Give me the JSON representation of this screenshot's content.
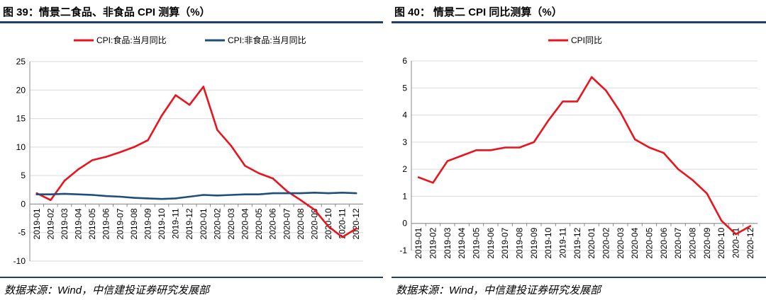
{
  "figures": [
    {
      "title": "图 39：情景二食品、非食品 CPI 测算（%）",
      "source": "数据来源：Wind，中信建投证券研究发展部"
    },
    {
      "title": "图 40：  情景二 CPI 同比测算（%）",
      "source": "数据来源：Wind，中信建投证券研究发展部"
    }
  ],
  "chart_data": [
    {
      "type": "line",
      "title": "",
      "xlabel": "",
      "ylabel": "",
      "categories": [
        "2019-01",
        "2019-02",
        "2019-03",
        "2019-04",
        "2019-05",
        "2019-06",
        "2019-07",
        "2019-08",
        "2019-09",
        "2019-10",
        "2019-11",
        "2019-12",
        "2020-01",
        "2020-02",
        "2020-03",
        "2020-04",
        "2020-05",
        "2020-06",
        "2020-07",
        "2020-08",
        "2020-09",
        "2020-10",
        "2020-11",
        "2020-12"
      ],
      "ylim": [
        -10,
        25
      ],
      "yticks": [
        -10,
        -5,
        0,
        5,
        10,
        15,
        20,
        25
      ],
      "grid": true,
      "legend_position": "top",
      "series": [
        {
          "name": "CPI:食品:当月同比",
          "color": "#e8141e",
          "values": [
            1.9,
            0.7,
            4.1,
            6.1,
            7.7,
            8.3,
            9.1,
            10.0,
            11.2,
            15.5,
            19.1,
            17.4,
            20.6,
            13.0,
            10.2,
            6.7,
            5.4,
            4.5,
            2.3,
            0.7,
            -1.0,
            -3.9,
            -5.8,
            -4.3
          ]
        },
        {
          "name": "CPI:非食品:当月同比",
          "color": "#1f4e79",
          "values": [
            1.7,
            1.7,
            1.8,
            1.7,
            1.6,
            1.4,
            1.3,
            1.1,
            1.0,
            0.9,
            1.0,
            1.3,
            1.6,
            1.5,
            1.6,
            1.7,
            1.7,
            1.9,
            1.9,
            1.9,
            2.0,
            1.9,
            2.0,
            1.9
          ]
        }
      ]
    },
    {
      "type": "line",
      "title": "",
      "xlabel": "",
      "ylabel": "",
      "categories": [
        "2019-01",
        "2019-02",
        "2019-03",
        "2019-04",
        "2019-05",
        "2019-06",
        "2019-07",
        "2019-08",
        "2019-09",
        "2019-10",
        "2019-11",
        "2019-12",
        "2020-01",
        "2020-02",
        "2020-03",
        "2020-04",
        "2020-05",
        "2020-06",
        "2020-07",
        "2020-08",
        "2020-09",
        "2020-10",
        "2020-11",
        "2020-12"
      ],
      "ylim": [
        -1,
        6
      ],
      "yticks": [
        -1,
        0,
        1,
        2,
        3,
        4,
        5,
        6
      ],
      "grid": true,
      "legend_position": "top",
      "series": [
        {
          "name": "CPI同比",
          "color": "#e8141e",
          "values": [
            1.7,
            1.5,
            2.3,
            2.5,
            2.7,
            2.7,
            2.8,
            2.8,
            3.0,
            3.8,
            4.5,
            4.5,
            5.4,
            4.9,
            4.1,
            3.1,
            2.8,
            2.6,
            2.0,
            1.6,
            1.1,
            0.1,
            -0.4,
            -0.1
          ]
        }
      ]
    }
  ]
}
